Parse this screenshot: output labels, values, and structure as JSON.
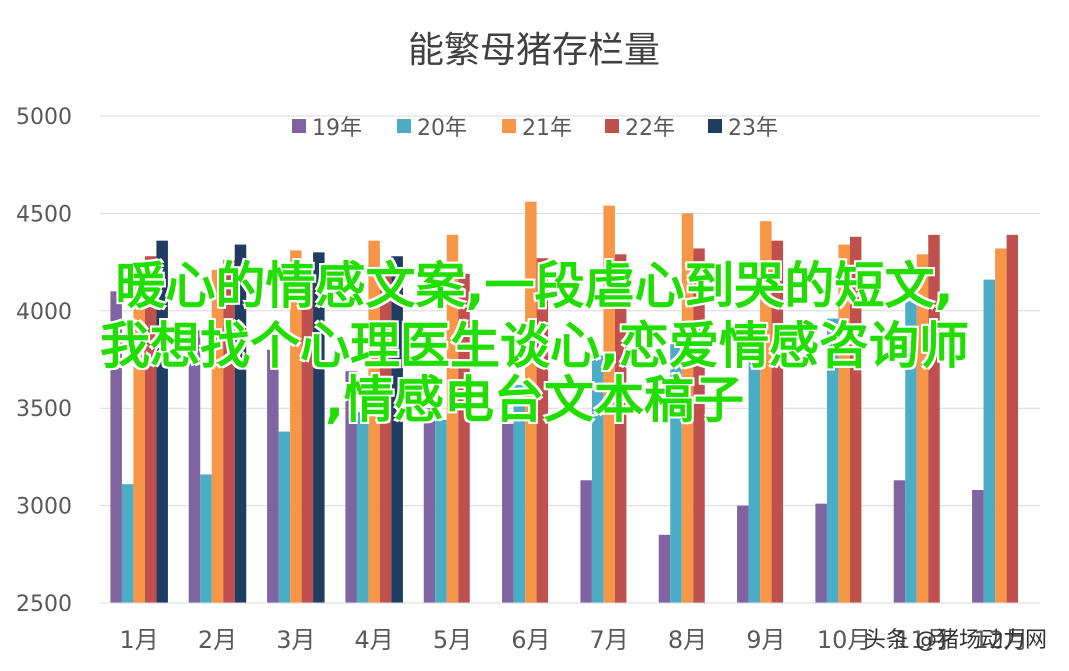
{
  "chart_data": {
    "type": "bar",
    "title": "能繁母猪存栏量",
    "categories": [
      "1月",
      "2月",
      "3月",
      "4月",
      "5月",
      "6月",
      "7月",
      "8月",
      "9月",
      "10月",
      "11月",
      "12月"
    ],
    "ylim": [
      2500,
      5000
    ],
    "yticks": [
      2500,
      3000,
      3500,
      4000,
      4500,
      5000
    ],
    "grid": true,
    "legend_position": "top",
    "series": [
      {
        "name": "19年",
        "color": "#8064a2",
        "values": [
          4100,
          3900,
          3800,
          3690,
          3500,
          3420,
          3130,
          2850,
          3000,
          3010,
          3130,
          3080
        ]
      },
      {
        "name": "20年",
        "color": "#4bacc6",
        "values": [
          3110,
          3160,
          3380,
          3480,
          3440,
          3620,
          3770,
          3900,
          3800,
          3960,
          4110,
          4160
        ]
      },
      {
        "name": "21年",
        "color": "#f79646",
        "values": [
          4200,
          4210,
          4310,
          4360,
          4390,
          4560,
          4540,
          4500,
          4460,
          4340,
          4290,
          4320
        ]
      },
      {
        "name": "22年",
        "color": "#c0504d",
        "values": [
          4280,
          4260,
          4190,
          4180,
          4190,
          4270,
          4290,
          4320,
          4360,
          4380,
          4390,
          4390
        ]
      },
      {
        "name": "23年",
        "color": "#1f3d63",
        "values": [
          4360,
          4340,
          4300,
          4280,
          null,
          null,
          null,
          null,
          null,
          null,
          null,
          null
        ]
      }
    ]
  },
  "overlay": {
    "line1": "暖心的情感文案,一段虐心到哭的短文,",
    "line2": "我想找个心理医生谈心,恋爱情感咨询师",
    "line3": ",情感电台文本稿子"
  },
  "watermark": "头条 @猪场动力网"
}
